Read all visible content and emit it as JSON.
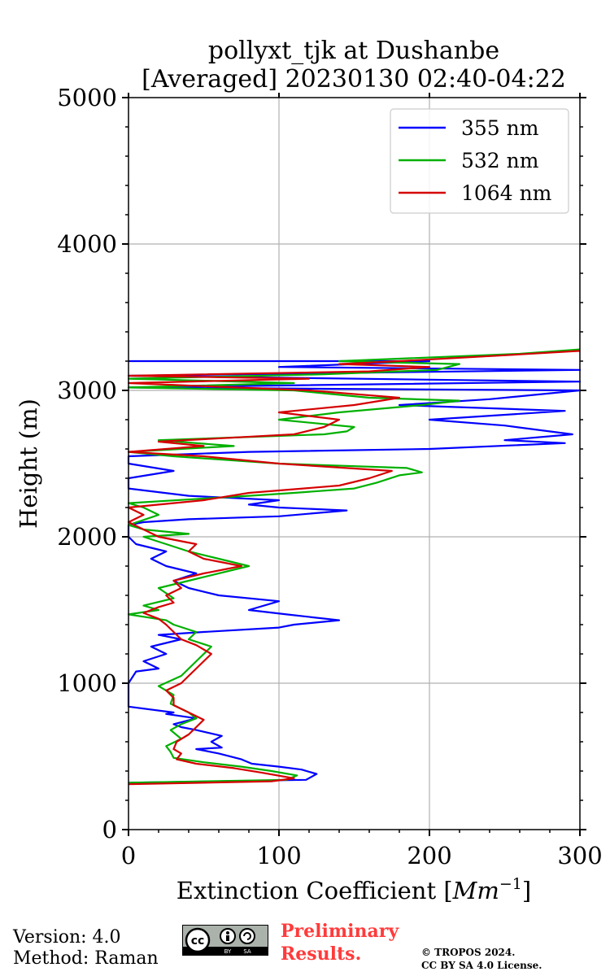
{
  "chart_data": {
    "type": "line",
    "title": "pollyxt_tjk at Dushanbe",
    "subtitle": "[Averaged] 20230130 02:40-04:22",
    "xlabel": "Extinction Coefficient [",
    "xlabel_unit_base": "Mm",
    "xlabel_unit_exp": "−1",
    "xlabel_close": "]",
    "ylabel": "Height (m)",
    "xlim": [
      0,
      300
    ],
    "ylim": [
      0,
      5000
    ],
    "xticks": [
      0,
      100,
      200,
      300
    ],
    "yticks": [
      0,
      1000,
      2000,
      3000,
      4000,
      5000
    ],
    "grid": true,
    "legend_position": "top-right",
    "series": [
      {
        "name": "355 nm",
        "color": "#0000ff",
        "points": [
          [
            0,
            320
          ],
          [
            118,
            340
          ],
          [
            125,
            380
          ],
          [
            115,
            410
          ],
          [
            100,
            430
          ],
          [
            82,
            450
          ],
          [
            75,
            480
          ],
          [
            60,
            520
          ],
          [
            45,
            550
          ],
          [
            62,
            560
          ],
          [
            55,
            600
          ],
          [
            62,
            640
          ],
          [
            45,
            680
          ],
          [
            35,
            700
          ],
          [
            30,
            720
          ],
          [
            45,
            760
          ],
          [
            25,
            790
          ],
          [
            30,
            800
          ],
          [
            0,
            840
          ],
          [
            0,
            1000
          ],
          [
            5,
            1080
          ],
          [
            20,
            1100
          ],
          [
            10,
            1150
          ],
          [
            25,
            1200
          ],
          [
            15,
            1250
          ],
          [
            35,
            1300
          ],
          [
            20,
            1330
          ],
          [
            50,
            1350
          ],
          [
            100,
            1380
          ],
          [
            110,
            1400
          ],
          [
            140,
            1430
          ],
          [
            105,
            1470
          ],
          [
            80,
            1500
          ],
          [
            100,
            1560
          ],
          [
            60,
            1600
          ],
          [
            40,
            1650
          ],
          [
            30,
            1700
          ],
          [
            45,
            1750
          ],
          [
            25,
            1800
          ],
          [
            15,
            1850
          ],
          [
            25,
            1900
          ],
          [
            5,
            1950
          ],
          [
            0,
            2000
          ],
          [
            0,
            2080
          ],
          [
            10,
            2100
          ],
          [
            40,
            2120
          ],
          [
            100,
            2140
          ],
          [
            145,
            2180
          ],
          [
            100,
            2200
          ],
          [
            80,
            2220
          ],
          [
            100,
            2250
          ],
          [
            40,
            2280
          ],
          [
            0,
            2330
          ],
          [
            0,
            2400
          ],
          [
            30,
            2450
          ],
          [
            0,
            2500
          ],
          [
            0,
            2550
          ],
          [
            80,
            2580
          ],
          [
            200,
            2600
          ],
          [
            290,
            2640
          ],
          [
            250,
            2660
          ],
          [
            295,
            2700
          ],
          [
            250,
            2760
          ],
          [
            200,
            2800
          ],
          [
            290,
            2860
          ],
          [
            180,
            2900
          ],
          [
            240,
            2940
          ],
          [
            300,
            3000
          ],
          [
            0,
            3020
          ],
          [
            300,
            3060
          ],
          [
            0,
            3100
          ],
          [
            300,
            3140
          ],
          [
            100,
            3160
          ],
          [
            200,
            3200
          ],
          [
            0,
            3200
          ]
        ]
      },
      {
        "name": "532 nm",
        "color": "#00b000",
        "points": [
          [
            0,
            320
          ],
          [
            105,
            340
          ],
          [
            112,
            370
          ],
          [
            95,
            400
          ],
          [
            75,
            430
          ],
          [
            50,
            460
          ],
          [
            30,
            490
          ],
          [
            28,
            530
          ],
          [
            25,
            570
          ],
          [
            35,
            620
          ],
          [
            28,
            680
          ],
          [
            35,
            720
          ],
          [
            45,
            760
          ],
          [
            40,
            800
          ],
          [
            28,
            860
          ],
          [
            30,
            920
          ],
          [
            20,
            980
          ],
          [
            35,
            1050
          ],
          [
            45,
            1150
          ],
          [
            55,
            1250
          ],
          [
            40,
            1300
          ],
          [
            45,
            1350
          ],
          [
            30,
            1400
          ],
          [
            25,
            1430
          ],
          [
            0,
            1470
          ],
          [
            20,
            1500
          ],
          [
            10,
            1530
          ],
          [
            30,
            1580
          ],
          [
            20,
            1650
          ],
          [
            40,
            1700
          ],
          [
            80,
            1800
          ],
          [
            60,
            1850
          ],
          [
            40,
            1900
          ],
          [
            25,
            1950
          ],
          [
            10,
            2000
          ],
          [
            40,
            2020
          ],
          [
            10,
            2050
          ],
          [
            0,
            2080
          ],
          [
            20,
            2150
          ],
          [
            10,
            2200
          ],
          [
            0,
            2230
          ],
          [
            80,
            2280
          ],
          [
            110,
            2300
          ],
          [
            150,
            2330
          ],
          [
            165,
            2370
          ],
          [
            180,
            2420
          ],
          [
            195,
            2440
          ],
          [
            185,
            2470
          ],
          [
            100,
            2500
          ],
          [
            30,
            2550
          ],
          [
            0,
            2580
          ],
          [
            70,
            2620
          ],
          [
            20,
            2660
          ],
          [
            130,
            2700
          ],
          [
            145,
            2720
          ],
          [
            150,
            2750
          ],
          [
            100,
            2800
          ],
          [
            140,
            2850
          ],
          [
            195,
            2900
          ],
          [
            220,
            2930
          ],
          [
            160,
            2950
          ],
          [
            110,
            3000
          ],
          [
            0,
            3020
          ],
          [
            110,
            3050
          ],
          [
            0,
            3080
          ],
          [
            130,
            3110
          ],
          [
            205,
            3140
          ],
          [
            220,
            3180
          ],
          [
            140,
            3200
          ],
          [
            260,
            3250
          ],
          [
            300,
            3280
          ]
        ]
      },
      {
        "name": "1064 nm",
        "color": "#d40000",
        "points": [
          [
            0,
            310
          ],
          [
            95,
            330
          ],
          [
            110,
            350
          ],
          [
            88,
            390
          ],
          [
            70,
            420
          ],
          [
            45,
            450
          ],
          [
            32,
            480
          ],
          [
            35,
            520
          ],
          [
            30,
            550
          ],
          [
            32,
            600
          ],
          [
            40,
            650
          ],
          [
            45,
            700
          ],
          [
            50,
            750
          ],
          [
            40,
            800
          ],
          [
            30,
            850
          ],
          [
            30,
            900
          ],
          [
            25,
            950
          ],
          [
            35,
            1000
          ],
          [
            40,
            1050
          ],
          [
            45,
            1100
          ],
          [
            50,
            1150
          ],
          [
            55,
            1200
          ],
          [
            45,
            1260
          ],
          [
            35,
            1300
          ],
          [
            30,
            1350
          ],
          [
            25,
            1400
          ],
          [
            20,
            1440
          ],
          [
            10,
            1480
          ],
          [
            20,
            1520
          ],
          [
            30,
            1550
          ],
          [
            25,
            1600
          ],
          [
            35,
            1650
          ],
          [
            30,
            1700
          ],
          [
            50,
            1750
          ],
          [
            75,
            1800
          ],
          [
            50,
            1850
          ],
          [
            40,
            1900
          ],
          [
            45,
            1950
          ],
          [
            20,
            2000
          ],
          [
            10,
            2050
          ],
          [
            0,
            2100
          ],
          [
            10,
            2150
          ],
          [
            0,
            2200
          ],
          [
            50,
            2250
          ],
          [
            80,
            2300
          ],
          [
            140,
            2350
          ],
          [
            160,
            2400
          ],
          [
            175,
            2450
          ],
          [
            100,
            2500
          ],
          [
            50,
            2550
          ],
          [
            0,
            2580
          ],
          [
            50,
            2620
          ],
          [
            20,
            2650
          ],
          [
            110,
            2700
          ],
          [
            130,
            2750
          ],
          [
            140,
            2800
          ],
          [
            100,
            2850
          ],
          [
            150,
            2900
          ],
          [
            180,
            2950
          ],
          [
            120,
            3000
          ],
          [
            0,
            3050
          ],
          [
            120,
            3080
          ],
          [
            0,
            3100
          ],
          [
            160,
            3130
          ],
          [
            200,
            3160
          ],
          [
            140,
            3180
          ],
          [
            180,
            3200
          ],
          [
            250,
            3240
          ],
          [
            300,
            3270
          ]
        ]
      }
    ]
  },
  "footer": {
    "version": "Version: 4.0",
    "method": "Method: Raman",
    "badge_cc": "cc",
    "badge_by": "BY",
    "badge_sa": "SA",
    "preliminary_line1": "Preliminary",
    "preliminary_line2": "Results.",
    "copyright_line1": "© TROPOS 2024.",
    "copyright_line2": "CC BY SA 4.0 License."
  }
}
